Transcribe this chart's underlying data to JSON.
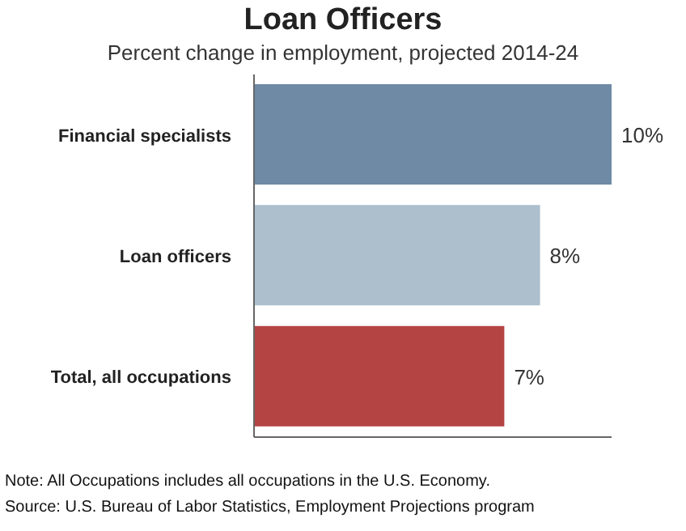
{
  "chart_data": {
    "type": "bar",
    "orientation": "horizontal",
    "title": "Loan Officers",
    "subtitle": "Percent change in employment, projected 2014-24",
    "categories": [
      "Financial specialists",
      "Loan officers",
      "Total, all occupations"
    ],
    "values": [
      10,
      8,
      7
    ],
    "colors": [
      "#6e8aa5",
      "#adbfcc",
      "#b44344"
    ],
    "value_labels": [
      "10%",
      "8%",
      "7%"
    ],
    "annotations": [
      "Note: All Occupations includes all occupations in the U.S. Economy.",
      "Source: U.S. Bureau of Labor Statistics, Employment Projections program"
    ]
  }
}
